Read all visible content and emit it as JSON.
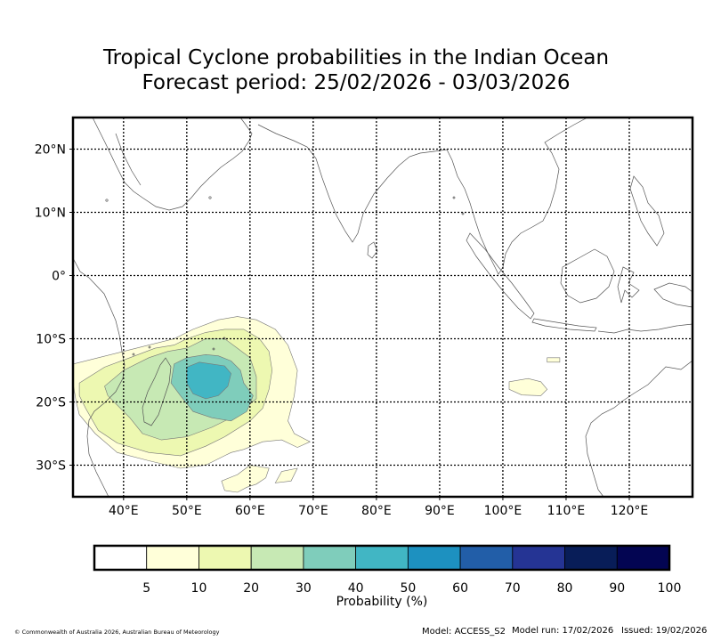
{
  "title": {
    "line1": "Tropical Cyclone probabilities in the Indian Ocean",
    "line2": "Forecast period: 25/02/2026 - 03/03/2026"
  },
  "map": {
    "lon_range": [
      32,
      130
    ],
    "lat_range": [
      -35,
      25
    ],
    "lon_ticks": [
      {
        "value": 40,
        "label": "40°E"
      },
      {
        "value": 50,
        "label": "50°E"
      },
      {
        "value": 60,
        "label": "60°E"
      },
      {
        "value": 70,
        "label": "70°E"
      },
      {
        "value": 80,
        "label": "80°E"
      },
      {
        "value": 90,
        "label": "90°E"
      },
      {
        "value": 100,
        "label": "100°E"
      },
      {
        "value": 110,
        "label": "110°E"
      },
      {
        "value": 120,
        "label": "120°E"
      }
    ],
    "lat_ticks": [
      {
        "value": 20,
        "label": "20°N"
      },
      {
        "value": 10,
        "label": "10°N"
      },
      {
        "value": 0,
        "label": "0°"
      },
      {
        "value": -10,
        "label": "10°S"
      },
      {
        "value": -20,
        "label": "20°S"
      },
      {
        "value": -30,
        "label": "30°S"
      }
    ],
    "colors": {
      "coastline": "#555555",
      "grid": "#000000",
      "contour_edge": "#777777"
    },
    "probability_regions": [
      {
        "level": 5,
        "color": "#ffffd9",
        "polygons": [
          [
            [
              32,
              -14
            ],
            [
              36,
              -13
            ],
            [
              40,
              -12
            ],
            [
              44,
              -11
            ],
            [
              48,
              -10
            ],
            [
              51,
              -8.5
            ],
            [
              55,
              -7
            ],
            [
              58,
              -6.5
            ],
            [
              61,
              -7
            ],
            [
              64,
              -8.5
            ],
            [
              66,
              -11
            ],
            [
              67.5,
              -15
            ],
            [
              67,
              -19
            ],
            [
              66,
              -23
            ],
            [
              67,
              -25
            ],
            [
              69.5,
              -26.3
            ],
            [
              67.5,
              -27.2
            ],
            [
              65,
              -26
            ],
            [
              62,
              -26.3
            ],
            [
              59,
              -27.5
            ],
            [
              57,
              -28
            ],
            [
              55,
              -29
            ],
            [
              53,
              -30
            ],
            [
              49,
              -30.5
            ],
            [
              44,
              -29.3
            ],
            [
              39,
              -28
            ],
            [
              35.5,
              -25
            ],
            [
              33,
              -22
            ],
            [
              32.5,
              -20
            ],
            [
              32,
              -17
            ]
          ],
          [
            [
              60,
              -30
            ],
            [
              63,
              -30.5
            ],
            [
              62.5,
              -32
            ],
            [
              61,
              -33
            ],
            [
              59.5,
              -33.5
            ],
            [
              58,
              -34.3
            ],
            [
              56,
              -34
            ],
            [
              55.5,
              -32.5
            ],
            [
              58,
              -31.5
            ]
          ],
          [
            [
              65,
              -31
            ],
            [
              67.5,
              -30.5
            ],
            [
              66.5,
              -32.5
            ],
            [
              64,
              -32.8
            ]
          ],
          [
            [
              101,
              -16.8
            ],
            [
              104,
              -16.3
            ],
            [
              106,
              -16.8
            ],
            [
              107,
              -18
            ],
            [
              106,
              -19
            ],
            [
              103,
              -18.9
            ],
            [
              101,
              -18
            ]
          ],
          [
            [
              107,
              -13
            ],
            [
              109,
              -13
            ],
            [
              109,
              -13.7
            ],
            [
              107,
              -13.7
            ]
          ]
        ]
      },
      {
        "level": 10,
        "color": "#edf8b1",
        "polygons": [
          [
            [
              33,
              -17
            ],
            [
              37,
              -14.5
            ],
            [
              41,
              -13
            ],
            [
              45,
              -11.5
            ],
            [
              48,
              -11
            ],
            [
              50,
              -10
            ],
            [
              53,
              -9
            ],
            [
              56,
              -8.5
            ],
            [
              59,
              -8.5
            ],
            [
              61.5,
              -10
            ],
            [
              63,
              -12
            ],
            [
              63.5,
              -15
            ],
            [
              63,
              -18
            ],
            [
              62,
              -21
            ],
            [
              60,
              -23
            ],
            [
              56,
              -25.5
            ],
            [
              53,
              -27
            ],
            [
              49,
              -28.5
            ],
            [
              44,
              -28
            ],
            [
              39,
              -26.5
            ],
            [
              36,
              -24.5
            ],
            [
              34,
              -21
            ],
            [
              33,
              -19
            ]
          ]
        ]
      },
      {
        "level": 20,
        "color": "#c7e9b4",
        "polygons": [
          [
            [
              37,
              -17.5
            ],
            [
              40,
              -15
            ],
            [
              44,
              -13
            ],
            [
              47,
              -12
            ],
            [
              50,
              -11.5
            ],
            [
              53,
              -10
            ],
            [
              56,
              -10
            ],
            [
              58,
              -11.5
            ],
            [
              60,
              -13
            ],
            [
              61,
              -16
            ],
            [
              61,
              -19.5
            ],
            [
              58,
              -22
            ],
            [
              54,
              -24
            ],
            [
              50,
              -25.5
            ],
            [
              46,
              -26
            ],
            [
              43,
              -25
            ],
            [
              41,
              -22.5
            ],
            [
              39,
              -20.5
            ],
            [
              37.5,
              -19
            ]
          ]
        ]
      },
      {
        "level": 30,
        "color": "#7fcdbb",
        "polygons": [
          [
            [
              48,
              -14
            ],
            [
              50,
              -13
            ],
            [
              53,
              -12.5
            ],
            [
              55,
              -12.7
            ],
            [
              57,
              -13.5
            ],
            [
              58.5,
              -15
            ],
            [
              59,
              -17
            ],
            [
              60.5,
              -19
            ],
            [
              59.5,
              -21.5
            ],
            [
              57,
              -23
            ],
            [
              54,
              -22.5
            ],
            [
              51,
              -21.5
            ],
            [
              49,
              -19
            ],
            [
              47.5,
              -17
            ]
          ]
        ]
      },
      {
        "level": 40,
        "color": "#41b6c4",
        "polygons": [
          [
            [
              50,
              -14.5
            ],
            [
              52,
              -13.7
            ],
            [
              54,
              -14
            ],
            [
              56,
              -14.3
            ],
            [
              57,
              -15.5
            ],
            [
              56.5,
              -17.5
            ],
            [
              55,
              -19
            ],
            [
              53,
              -19.5
            ],
            [
              51,
              -18.7
            ],
            [
              50,
              -17
            ]
          ]
        ]
      }
    ]
  },
  "colorbar": {
    "bins": [
      {
        "min": 0,
        "max": 5,
        "color": "#ffffff"
      },
      {
        "min": 5,
        "max": 10,
        "color": "#ffffd9"
      },
      {
        "min": 10,
        "max": 20,
        "color": "#edf8b1"
      },
      {
        "min": 20,
        "max": 30,
        "color": "#c7e9b4"
      },
      {
        "min": 30,
        "max": 40,
        "color": "#7fcdbb"
      },
      {
        "min": 40,
        "max": 50,
        "color": "#41b6c4"
      },
      {
        "min": 50,
        "max": 60,
        "color": "#1d91c0"
      },
      {
        "min": 60,
        "max": 70,
        "color": "#225ea8"
      },
      {
        "min": 70,
        "max": 80,
        "color": "#253494"
      },
      {
        "min": 80,
        "max": 90,
        "color": "#081d58"
      },
      {
        "min": 90,
        "max": 100,
        "color": "#030552"
      }
    ],
    "tick_labels": [
      "5",
      "10",
      "20",
      "30",
      "40",
      "50",
      "60",
      "70",
      "80",
      "90",
      "100"
    ],
    "label": "Probability (%)"
  },
  "footer": {
    "copyright": "© Commonwealth of Australia 2026, Australian Bureau of Meteorology",
    "model": "Model: ACCESS_S2",
    "model_run": "Model run: 17/02/2026",
    "issued": "Issued: 19/02/2026"
  }
}
